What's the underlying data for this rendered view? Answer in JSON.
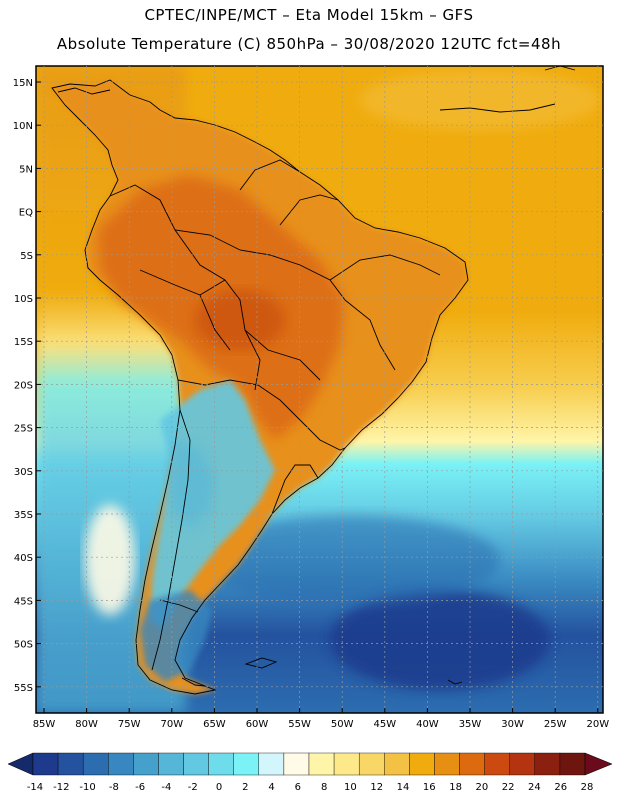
{
  "header": {
    "line1": "CPTEC/INPE/MCT –  Eta Model 15km – GFS",
    "line2": "Absolute Temperature (C) 850hPa – 30/08/2020 12UTC fct=48h"
  },
  "map": {
    "lat_labels": [
      "15N",
      "10N",
      "5N",
      "EQ",
      "5S",
      "10S",
      "15S",
      "20S",
      "25S",
      "30S",
      "35S",
      "40S",
      "45S",
      "50S",
      "55S"
    ],
    "lon_labels": [
      "85W",
      "80W",
      "75W",
      "70W",
      "65W",
      "60W",
      "55W",
      "50W",
      "45W",
      "40W",
      "35W",
      "30W",
      "25W",
      "20W"
    ]
  },
  "legend": {
    "ticks": [
      "-14",
      "-12",
      "-10",
      "-8",
      "-6",
      "-4",
      "-2",
      "0",
      "2",
      "4",
      "6",
      "8",
      "10",
      "12",
      "14",
      "16",
      "18",
      "20",
      "22",
      "24",
      "26",
      "28"
    ],
    "colors": [
      "#1e3a8c",
      "#24529e",
      "#2c6db0",
      "#3887c0",
      "#45a0cc",
      "#55b6d8",
      "#63c8e2",
      "#6fdcec",
      "#7af2f6",
      "#d2f6fb",
      "#fffbe6",
      "#fff5a8",
      "#fde88a",
      "#f9d767",
      "#f3c144",
      "#f0ac0e",
      "#e78f13",
      "#de6a10",
      "#cc4a10",
      "#b43310",
      "#8c2010",
      "#6e1510"
    ],
    "under_color": "#152a6a",
    "over_color": "#6a0a1a"
  }
}
